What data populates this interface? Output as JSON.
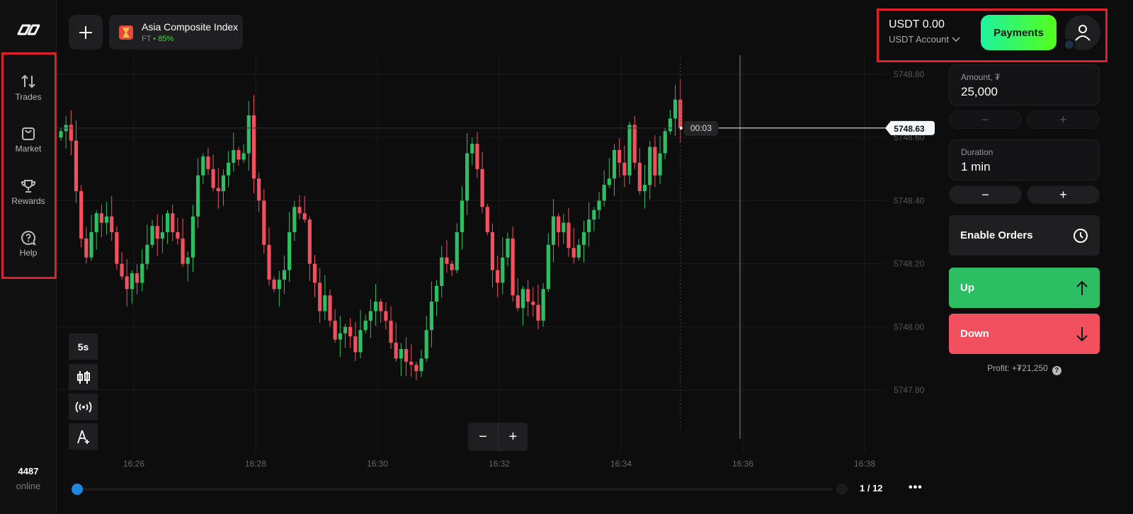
{
  "sidebar": {
    "items": [
      {
        "label": "Trades",
        "icon": "arrows-up-down-icon"
      },
      {
        "label": "Market",
        "icon": "shopping-bag-icon"
      },
      {
        "label": "Rewards",
        "icon": "trophy-icon"
      },
      {
        "label": "Help",
        "icon": "help-bubble-icon"
      }
    ],
    "online_count": "4487",
    "online_label": "online"
  },
  "header": {
    "asset_name": "Asia Composite Index",
    "asset_type": "FT",
    "asset_sep": " • ",
    "asset_payout": "85%",
    "balance": "USDT 0.00",
    "account": "USDT Account",
    "payments_label": "Payments"
  },
  "trade": {
    "amount_label": "Amount, ₮",
    "amount_value": "25,000",
    "duration_label": "Duration",
    "duration_value": "1 min",
    "minus": "−",
    "plus": "+",
    "enable_orders": "Enable Orders",
    "up": "Up",
    "down": "Down",
    "profit": "Profit: +₮21,250",
    "profit_help": "?"
  },
  "tools": {
    "timeframe": "5s",
    "zoom_out": "−",
    "zoom_in": "+"
  },
  "footer": {
    "pager": "1 / 12",
    "more": "•••"
  },
  "colors": {
    "up": "#2dbd62",
    "down": "#f2505f",
    "accent": "#3ff07a",
    "highlight_box": "#e0202a"
  },
  "chart_data": {
    "type": "candlestick",
    "candle_interval": "5s",
    "current_price": "5748.63",
    "countdown": "00:03",
    "y_ticks": [
      "5748.80",
      "5748.60",
      "5748.40",
      "5748.20",
      "5748.00",
      "5747.80"
    ],
    "ylim": [
      5747.8,
      5748.8
    ],
    "x_ticks": [
      "16:26",
      "16:28",
      "16:30",
      "16:32",
      "16:34",
      "16:36",
      "16:38"
    ],
    "first_open": 5748.6,
    "closes": [
      5748.62,
      5748.64,
      5748.59,
      5748.43,
      5748.28,
      5748.22,
      5748.3,
      5748.36,
      5748.33,
      5748.35,
      5748.3,
      5748.2,
      5748.16,
      5748.12,
      5748.17,
      5748.14,
      5748.2,
      5748.26,
      5748.32,
      5748.28,
      5748.3,
      5748.36,
      5748.3,
      5748.28,
      5748.2,
      5748.22,
      5748.35,
      5748.48,
      5748.54,
      5748.5,
      5748.44,
      5748.43,
      5748.48,
      5748.52,
      5748.56,
      5748.53,
      5748.55,
      5748.67,
      5748.47,
      5748.4,
      5748.26,
      5748.15,
      5748.12,
      5748.15,
      5748.18,
      5748.3,
      5748.38,
      5748.36,
      5748.34,
      5748.2,
      5748.14,
      5748.05,
      5748.1,
      5748.02,
      5747.96,
      5747.98,
      5748.0,
      5747.97,
      5747.92,
      5747.99,
      5748.02,
      5748.05,
      5748.08,
      5748.05,
      5748.02,
      5747.95,
      5747.9,
      5747.93,
      5747.89,
      5747.88,
      5747.86,
      5747.9,
      5747.99,
      5748.08,
      5748.13,
      5748.22,
      5748.2,
      5748.18,
      5748.3,
      5748.4,
      5748.55,
      5748.58,
      5748.5,
      5748.38,
      5748.3,
      5748.18,
      5748.14,
      5748.22,
      5748.28,
      5748.1,
      5748.06,
      5748.12,
      5748.08,
      5748.07,
      5748.02,
      5748.12,
      5748.26,
      5748.35,
      5748.3,
      5748.33,
      5748.25,
      5748.22,
      5748.26,
      5748.3,
      5748.34,
      5748.37,
      5748.4,
      5748.45,
      5748.47,
      5748.56,
      5748.52,
      5748.48,
      5748.64,
      5748.52,
      5748.43,
      5748.45,
      5748.57,
      5748.48,
      5748.55,
      5748.62,
      5748.66,
      5748.72,
      5748.63
    ]
  }
}
